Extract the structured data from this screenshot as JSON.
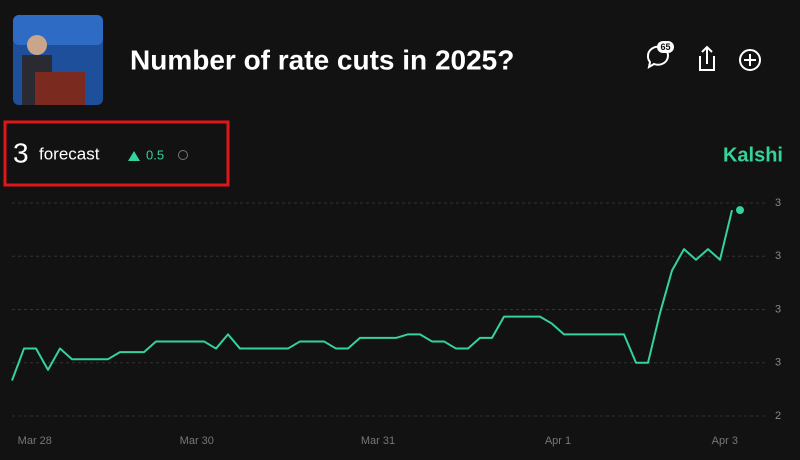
{
  "header": {
    "title": "Number of rate cuts in 2025?",
    "comments": 65,
    "forecast": {
      "value": 3,
      "label": "forecast",
      "change": 0.5
    },
    "source": "Kalshi"
  },
  "chart_data": {
    "type": "line",
    "color": "#34d399",
    "grid": true,
    "values": [
      2.5,
      2.59,
      2.59,
      2.53,
      2.59,
      2.56,
      2.56,
      2.56,
      2.56,
      2.58,
      2.58,
      2.58,
      2.61,
      2.61,
      2.61,
      2.61,
      2.61,
      2.59,
      2.63,
      2.59,
      2.59,
      2.59,
      2.59,
      2.59,
      2.61,
      2.61,
      2.61,
      2.59,
      2.59,
      2.62,
      2.62,
      2.62,
      2.62,
      2.63,
      2.63,
      2.61,
      2.61,
      2.59,
      2.59,
      2.62,
      2.62,
      2.68,
      2.68,
      2.68,
      2.68,
      2.66,
      2.63,
      2.63,
      2.63,
      2.63,
      2.63,
      2.63,
      2.55,
      2.55,
      2.69,
      2.81,
      2.87,
      2.84,
      2.87,
      2.84,
      2.98
    ],
    "xlim": [
      0,
      61
    ],
    "xticks": [
      {
        "value": 1.9,
        "label": "Mar 28"
      },
      {
        "value": 15.4,
        "label": "Mar 30"
      },
      {
        "value": 30.5,
        "label": "Mar 31"
      },
      {
        "value": 45.5,
        "label": "Apr 1"
      },
      {
        "value": 59.4,
        "label": "Apr 3"
      }
    ],
    "ylim": [
      2.4,
      3.0
    ],
    "yticks": [
      {
        "value": 3.0,
        "label": "3"
      },
      {
        "value": 2.85,
        "label": "3"
      },
      {
        "value": 2.7,
        "label": "3"
      },
      {
        "value": 2.55,
        "label": "3"
      },
      {
        "value": 2.4,
        "label": "2"
      }
    ]
  }
}
